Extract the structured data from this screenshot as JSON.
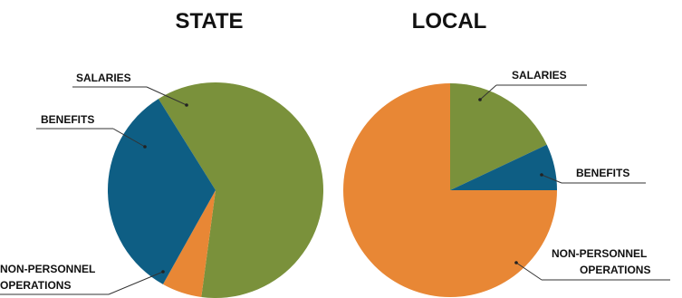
{
  "colors": {
    "salaries": "#7A913B",
    "benefits": "#0E5E84",
    "non_personnel": "#E88735"
  },
  "chart_data": [
    {
      "type": "pie",
      "title": "STATE",
      "slices": [
        {
          "label": "SALARIES",
          "value": 0.61,
          "color": "#7A913B"
        },
        {
          "label": "NON-PERSONNEL OPERATIONS",
          "value": 0.06,
          "color": "#E88735"
        },
        {
          "label": "BENEFITS",
          "value": 0.33,
          "color": "#0E5E84"
        }
      ]
    },
    {
      "type": "pie",
      "title": "LOCAL",
      "slices": [
        {
          "label": "SALARIES",
          "value": 0.18,
          "color": "#7A913B"
        },
        {
          "label": "BENEFITS",
          "value": 0.07,
          "color": "#0E5E84"
        },
        {
          "label": "NON-PERSONNEL OPERATIONS",
          "value": 0.75,
          "color": "#E88735"
        }
      ]
    }
  ]
}
